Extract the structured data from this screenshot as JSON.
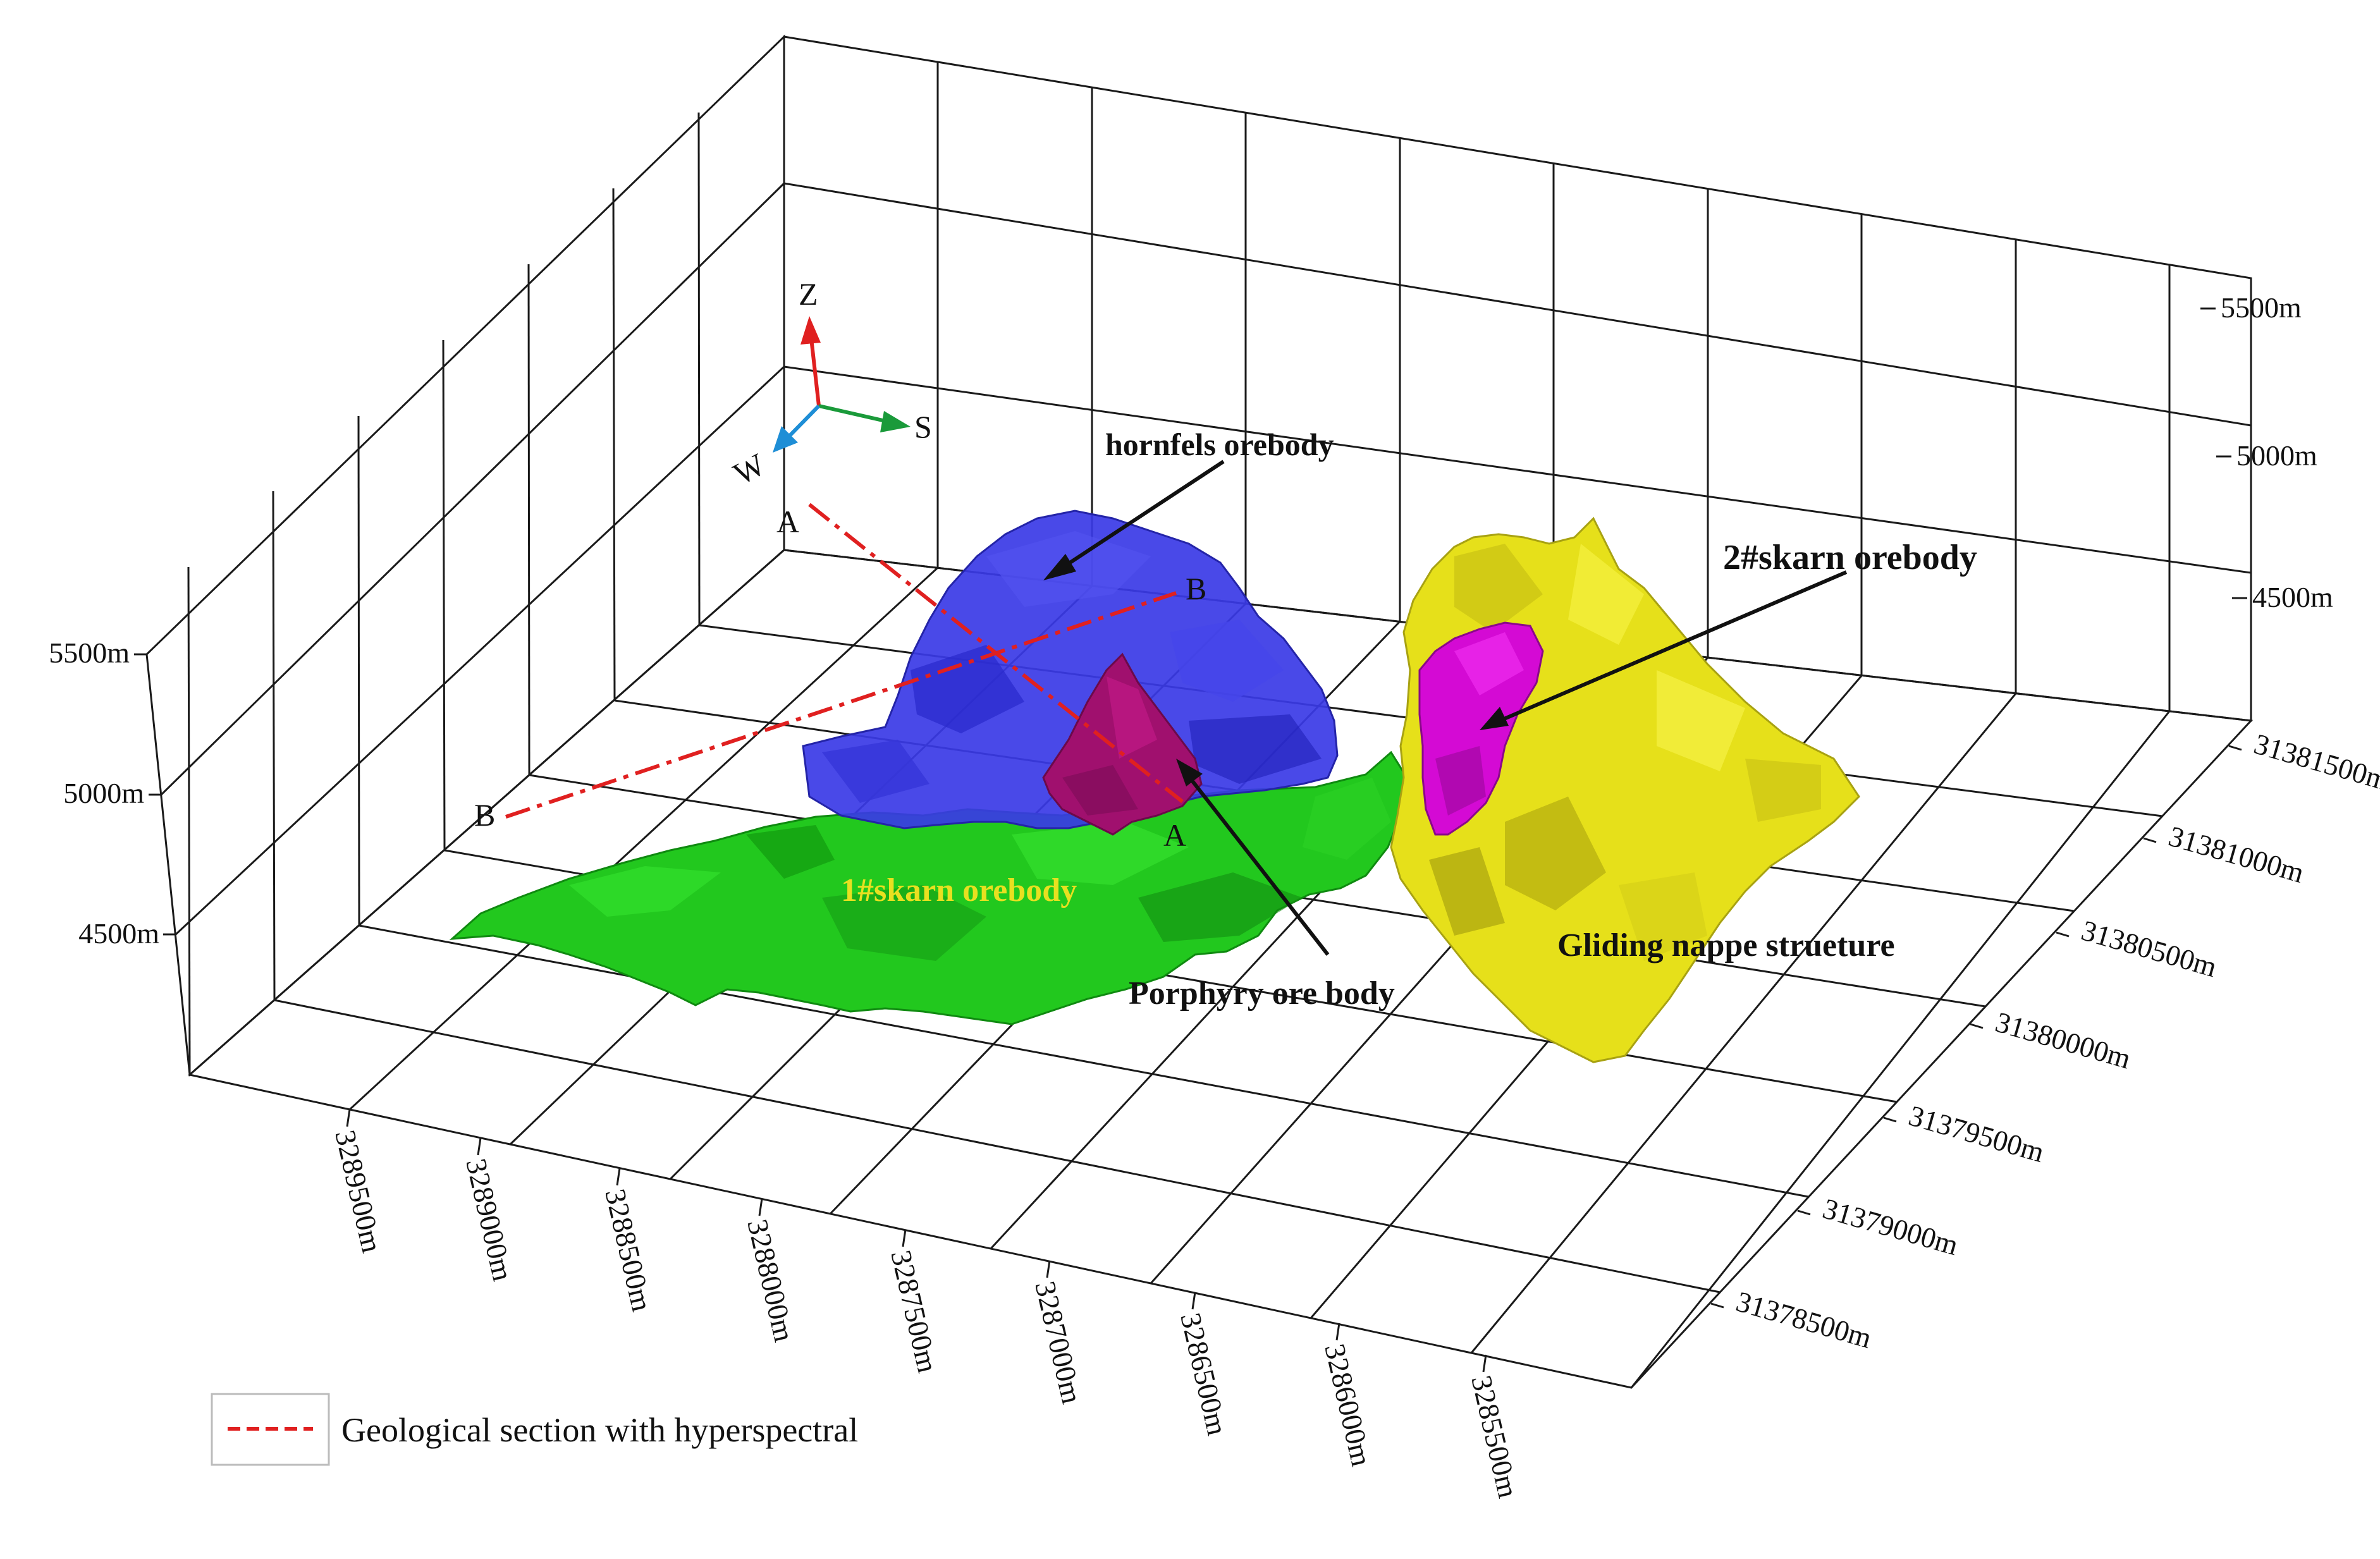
{
  "orientation": {
    "up": "Z",
    "east_arrow": "S",
    "west_arrow": "W"
  },
  "axes": {
    "z_left": [
      "5500m",
      "5000m",
      "4500m"
    ],
    "z_right": [
      "5500m",
      "5000m",
      "4500m"
    ],
    "x_front": [
      "3289500m",
      "3289000m",
      "3288500m",
      "3288000m",
      "3287500m",
      "3287000m",
      "3286500m",
      "3286000m",
      "3285500m"
    ],
    "y_right": [
      "31381500m",
      "31381000m",
      "31380500m",
      "31380000m",
      "31379500m",
      "31379000m",
      "31378500m"
    ]
  },
  "bodies": {
    "hornfels": {
      "label": "hornfels orebody",
      "color": "#3a3ae6"
    },
    "skarn1": {
      "label": "1#skarn orebody",
      "color": "#22c81e",
      "label_color": "#e8e020"
    },
    "porphyry": {
      "label": "Porphyry ore body",
      "color": "#a0106e"
    },
    "skarn2": {
      "label": "2#skarn orebody",
      "color": "#d40ad4"
    },
    "nappe": {
      "label": "Gliding nappe strueture",
      "color": "#e6e01a"
    }
  },
  "sections": {
    "line_color": "#e02020",
    "a_start": "A",
    "a_end": "A",
    "b_start": "B",
    "b_end": "B"
  },
  "legend": {
    "label": "Geological section with hyperspectral"
  }
}
